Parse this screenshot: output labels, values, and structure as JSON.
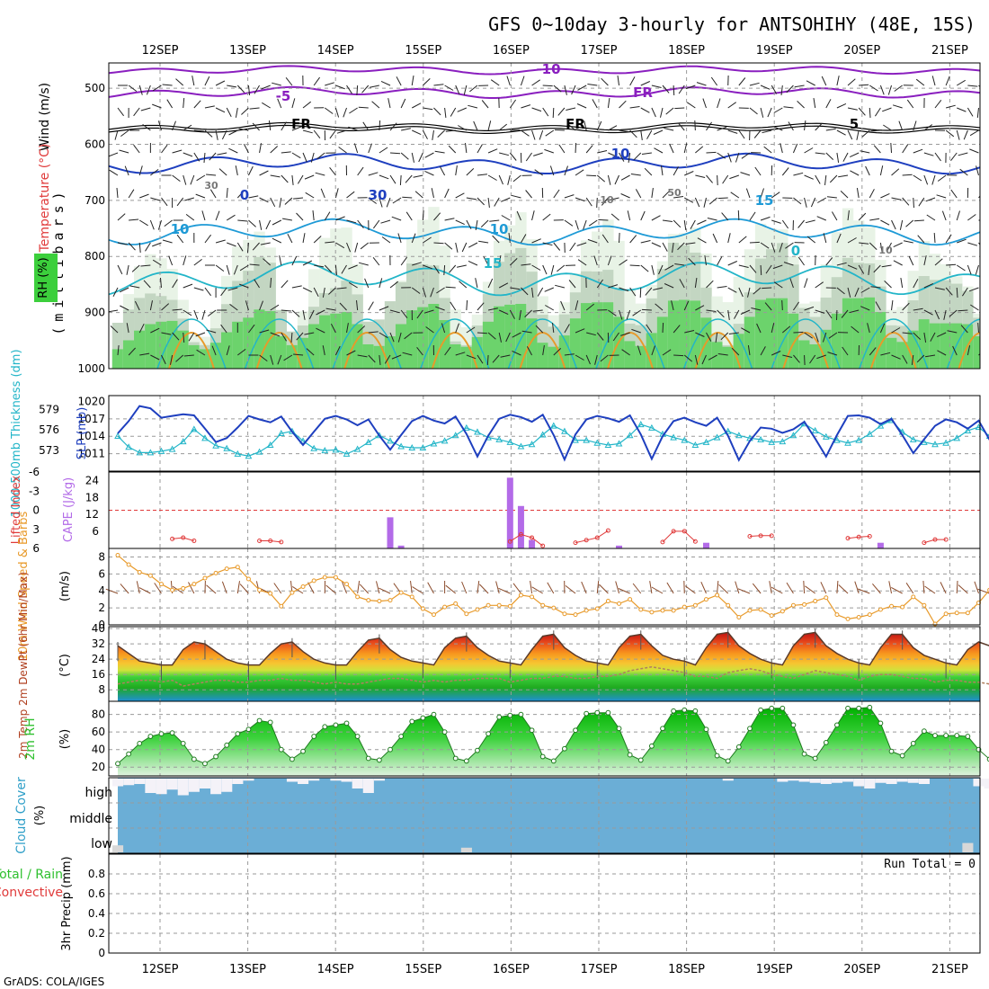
{
  "title": "GFS 0~10day 3-hourly for ANTSOHIHY (48E, 15S)",
  "credit": "GrADS: COLA/IGES",
  "days": [
    "12SEP",
    "13SEP",
    "14SEP",
    "15SEP",
    "16SEP",
    "17SEP",
    "18SEP",
    "19SEP",
    "20SEP",
    "21SEP"
  ],
  "colors": {
    "blue": "#1e3fbf",
    "cyan": "#22b5c8",
    "orange": "#e89a2a",
    "red": "#e03a3a",
    "purple": "#8a1fbf",
    "cape": "#b36be8",
    "green": "#2fc02f",
    "sky": "#6baed6",
    "grid": "#9a9a9a"
  },
  "panels": {
    "upper": {
      "ylabel": "(millibars)",
      "yticks": [
        "500",
        "600",
        "700",
        "800",
        "900",
        "1000"
      ],
      "title_wind": "Wind (m/s)",
      "title_temp": "Temperature (°C)",
      "title_rh": "RH (%)",
      "labels": [
        "-10",
        "-5",
        "FR",
        "FR",
        "FR",
        "5",
        "10",
        "10",
        "10",
        "15",
        "15",
        "0",
        "0",
        "30",
        "30",
        "50",
        "10",
        "10"
      ]
    },
    "thickness": {
      "ylabel_left": "1000-500mb Thickness (dm)",
      "ylabel_right": "SLP (mb)",
      "yticks_left": [
        "579",
        "576",
        "573"
      ],
      "yticks_right": [
        "1020",
        "1017",
        "1014",
        "1011"
      ]
    },
    "cape": {
      "ylabel_left": "Lifted Index",
      "ylabel_right": "CAPE (J/kg)",
      "yticks_left": [
        "-6",
        "-3",
        "0",
        "3",
        "6"
      ],
      "yticks_right": [
        "24",
        "18",
        "12",
        "6"
      ]
    },
    "wind10": {
      "ylabel": "10m Wind Speed & Barbs",
      "units": "(m/s)",
      "yticks": [
        "8",
        "6",
        "4",
        "2",
        "0"
      ]
    },
    "temp2m": {
      "ylabel": "2m Temp 2m DewPt (6hr Min/Max)",
      "units": "(°C)",
      "yticks": [
        "40",
        "32",
        "24",
        "16",
        "8"
      ]
    },
    "rh2m": {
      "ylabel": "2m RH",
      "units": "(%)",
      "yticks": [
        "80",
        "60",
        "40",
        "20"
      ]
    },
    "cloud": {
      "ylabel": "Cloud Cover",
      "units": "(%)",
      "levels": [
        "high",
        "middle",
        "low"
      ]
    },
    "precip": {
      "ylabel": "3hr Precip (mm)",
      "ylabel_total": "Total / Rain",
      "ylabel_conv": "Convective",
      "yticks": [
        "0.8",
        "0.6",
        "0.4",
        "0.2",
        "0"
      ],
      "run_total": "Run Total = 0"
    }
  },
  "chart_data": [
    {
      "type": "line",
      "title": "Sea level pressure and 1000-500mb thickness",
      "x": "3-hourly steps from 11 Sep 12Z to 21 Sep 12Z",
      "series": [
        {
          "name": "SLP (mb)",
          "values": [
            1014.5,
            1016.6,
            1019.2,
            1018.8,
            1017.2,
            1017.5,
            1017.8,
            1017.6,
            1015.3,
            1013,
            1013.7,
            1015.5,
            1017.5,
            1016.9,
            1016.4,
            1017.4,
            1014.8,
            1012.5,
            1014.8,
            1017,
            1017.5,
            1016.9,
            1015.9,
            1016.9,
            1014.1,
            1011.7,
            1014.2,
            1016.6,
            1017.5,
            1016.7,
            1016.2,
            1017.4,
            1014.4,
            1010.5,
            1014.1,
            1017,
            1017.7,
            1017.3,
            1016.5,
            1017.7,
            1014.2,
            1010,
            1014.3,
            1016.9,
            1017.5,
            1017.1,
            1016.5,
            1017.6,
            1014.3,
            1010.1,
            1014,
            1016.6,
            1017.2,
            1016.4,
            1015.8,
            1017.2,
            1014.1,
            1009.9,
            1013.2,
            1015.5,
            1015.3,
            1014.6,
            1015.2,
            1016.5,
            1013.6,
            1010.5,
            1014.2,
            1017.5,
            1017.6,
            1017.2,
            1016.1,
            1017,
            1014.2,
            1011.1,
            1013.5,
            1015.8,
            1016.9,
            1016.4,
            1015.3,
            1016.7,
            1013.4,
            1011.3
          ]
        },
        {
          "name": "Thickness (dm)",
          "values": [
            575.1,
            573.5,
            572.7,
            572.7,
            572.9,
            573.2,
            574.3,
            576.1,
            574.8,
            573.7,
            573.3,
            572.5,
            572.2,
            572.8,
            573.8,
            575.5,
            575.8,
            574.4,
            573.3,
            573,
            573.1,
            572.5,
            573.2,
            574.2,
            575.2,
            574.4,
            573.6,
            573.4,
            573.4,
            574,
            574.4,
            575.2,
            576.3,
            575.7,
            574.9,
            574.6,
            574.2,
            573.6,
            573.9,
            575.3,
            576.6,
            575.8,
            574.5,
            574.5,
            574.1,
            573.8,
            574,
            575.2,
            576.8,
            576.3,
            575.4,
            574.9,
            574.5,
            573.8,
            574.2,
            574.9,
            575.8,
            575.2,
            574.8,
            574.6,
            574.2,
            574.3,
            575.2,
            576.9,
            575.9,
            575,
            574.5,
            574.1,
            574.5,
            575.4,
            576.6,
            577.4,
            575.7,
            574.6,
            574.2,
            573.9,
            574.1,
            574.8,
            575.9,
            576.4,
            575.1,
            574.8
          ]
        }
      ]
    },
    {
      "type": "bar",
      "title": "CAPE (J/kg) and Lifted Index",
      "x": "3-hourly steps",
      "series": [
        {
          "name": "CAPE (J/kg)",
          "values": [
            0,
            0,
            0,
            0,
            0,
            0,
            0,
            0,
            0,
            0,
            0,
            0,
            0,
            0,
            0,
            0,
            0,
            0,
            0,
            0,
            0,
            0,
            0,
            0,
            0,
            11,
            1,
            0,
            0,
            0,
            0,
            0,
            0,
            0,
            0,
            0,
            25,
            15,
            3,
            0,
            0,
            0,
            0,
            0,
            0,
            0,
            1,
            0,
            0,
            0,
            0,
            0,
            0,
            0,
            2,
            0,
            0,
            0,
            0,
            0,
            0,
            0,
            0,
            0,
            0,
            0,
            0,
            0,
            0,
            0,
            2,
            0,
            0,
            0,
            0,
            0,
            0,
            0,
            0,
            0,
            0,
            0
          ]
        },
        {
          "name": "Lifted Index",
          "values": [
            null,
            null,
            null,
            null,
            null,
            4.5,
            4.3,
            4.8,
            null,
            null,
            null,
            null,
            null,
            4.8,
            4.8,
            5,
            null,
            null,
            null,
            null,
            null,
            null,
            null,
            null,
            null,
            null,
            null,
            null,
            null,
            null,
            null,
            null,
            null,
            null,
            null,
            null,
            4.9,
            3.8,
            4.3,
            5.6,
            null,
            null,
            5.1,
            4.7,
            4.3,
            3.2,
            null,
            null,
            null,
            null,
            5,
            3.3,
            3.3,
            4.9,
            null,
            null,
            null,
            null,
            4.1,
            4,
            4,
            null,
            null,
            null,
            null,
            null,
            null,
            4.4,
            4.2,
            4.1,
            null,
            null,
            null,
            null,
            5.1,
            4.6,
            4.6,
            null,
            null,
            null,
            null,
            null
          ]
        }
      ]
    },
    {
      "type": "line",
      "title": "10m Wind Speed (m/s)",
      "x": "3-hourly steps",
      "series": [
        {
          "name": "Wind speed (m/s)",
          "values": [
            8.2,
            7.1,
            6.2,
            5.8,
            4.8,
            4.1,
            4.3,
            4.8,
            5.5,
            6.1,
            6.6,
            6.8,
            5.4,
            4.1,
            3.7,
            2.2,
            3.8,
            4.5,
            5.2,
            5.6,
            5.6,
            4.8,
            3.3,
            2.9,
            2.8,
            2.9,
            3.8,
            3.3,
            1.9,
            1.2,
            2.1,
            2.5,
            1.3,
            1.8,
            2.3,
            2.3,
            2.2,
            3.5,
            3.3,
            2.3,
            2,
            1.3,
            1.2,
            1.7,
            1.9,
            2.8,
            2.5,
            3,
            1.8,
            1.5,
            1.7,
            1.7,
            2.1,
            2.3,
            3,
            3.5,
            2.3,
            0.9,
            1.7,
            1.8,
            1.1,
            1.6,
            2.3,
            2.4,
            2.8,
            3.2,
            1.2,
            0.7,
            0.9,
            1.2,
            1.8,
            2.2,
            2.1,
            3.3,
            2.3,
            0.1,
            1.3,
            1.4,
            1.4,
            2.6,
            4.1,
            5.5
          ]
        }
      ]
    },
    {
      "type": "area",
      "title": "2m Temp and DewPt (°C)",
      "x": "3-hourly steps",
      "series": [
        {
          "name": "2m Temp",
          "values": [
            31,
            27,
            23,
            22,
            21,
            21,
            29,
            33,
            32,
            28,
            24,
            22,
            21,
            21,
            27,
            32,
            33,
            28,
            24,
            22,
            21,
            21,
            28,
            34,
            35,
            29,
            25,
            23,
            22,
            21,
            30,
            35,
            36,
            30,
            26,
            23,
            22,
            21,
            29,
            36,
            37,
            30,
            26,
            23,
            22,
            21,
            30,
            36,
            37,
            31,
            26,
            24,
            23,
            21,
            30,
            37,
            38,
            31,
            27,
            24,
            22,
            21,
            31,
            37,
            38,
            31,
            27,
            24,
            22,
            21,
            30,
            37,
            37,
            30,
            26,
            24,
            22,
            21,
            29,
            33,
            31,
            29
          ]
        },
        {
          "name": "2m DewPt",
          "values": [
            11,
            12,
            13,
            13,
            12,
            13,
            10,
            11,
            12,
            13,
            13,
            12,
            12,
            13,
            13,
            14,
            13,
            13,
            12,
            11,
            12,
            11,
            11,
            12,
            13,
            14,
            14,
            13,
            12,
            13,
            12,
            13,
            13,
            14,
            14,
            14,
            12,
            13,
            14,
            14,
            15,
            15,
            14,
            14,
            15,
            15,
            16,
            18,
            19,
            20,
            19,
            18,
            17,
            15,
            15,
            14,
            17,
            18,
            19,
            18,
            16,
            15,
            14,
            16,
            18,
            17,
            16,
            15,
            13,
            15,
            16,
            16,
            15,
            14,
            14,
            12,
            13,
            13,
            12,
            12,
            11,
            10
          ]
        }
      ]
    },
    {
      "type": "area",
      "title": "2m RH (%)",
      "x": "3-hourly steps",
      "series": [
        {
          "name": "2m RH",
          "values": [
            24,
            35,
            47,
            55,
            58,
            59,
            47,
            29,
            24,
            32,
            45,
            58,
            63,
            73,
            71,
            40,
            29,
            38,
            55,
            66,
            68,
            70,
            55,
            30,
            28,
            40,
            55,
            72,
            76,
            80,
            60,
            30,
            27,
            39,
            58,
            77,
            79,
            80,
            62,
            32,
            27,
            41,
            62,
            81,
            82,
            82,
            64,
            34,
            28,
            44,
            64,
            84,
            85,
            84,
            63,
            33,
            27,
            43,
            64,
            85,
            87,
            87,
            68,
            35,
            30,
            48,
            68,
            87,
            87,
            88,
            70,
            38,
            33,
            47,
            61,
            56,
            56,
            56,
            55,
            40,
            29,
            27
          ]
        }
      ]
    },
    {
      "type": "bar",
      "title": "Cloud Cover (%) high / middle / low",
      "x": "3-hourly steps",
      "series": [
        {
          "name": "high",
          "values": [
            30,
            25,
            20,
            60,
            65,
            45,
            70,
            55,
            40,
            65,
            55,
            20,
            5,
            0,
            0,
            0,
            10,
            20,
            5,
            0,
            5,
            10,
            40,
            60,
            5,
            0,
            0,
            0,
            0,
            0,
            0,
            0,
            0,
            0,
            0,
            0,
            0,
            0,
            0,
            0,
            0,
            0,
            0,
            0,
            0,
            0,
            0,
            0,
            0,
            0,
            0,
            0,
            0,
            0,
            0,
            0,
            5,
            0,
            0,
            0,
            0,
            10,
            5,
            10,
            15,
            20,
            15,
            10,
            30,
            40,
            15,
            20,
            10,
            15,
            20,
            0,
            0,
            0,
            0,
            30,
            40,
            20
          ]
        },
        {
          "name": "low",
          "values": [
            30,
            0,
            0,
            0,
            0,
            0,
            0,
            0,
            0,
            0,
            0,
            0,
            0,
            0,
            0,
            0,
            0,
            0,
            0,
            0,
            0,
            0,
            0,
            0,
            0,
            0,
            0,
            0,
            0,
            0,
            0,
            0,
            20,
            0,
            0,
            0,
            0,
            0,
            0,
            0,
            0,
            0,
            0,
            0,
            0,
            0,
            0,
            0,
            0,
            0,
            0,
            0,
            0,
            0,
            0,
            0,
            0,
            0,
            0,
            0,
            0,
            0,
            0,
            0,
            0,
            0,
            0,
            0,
            0,
            0,
            0,
            0,
            0,
            0,
            0,
            0,
            0,
            0,
            40,
            0,
            0,
            0
          ]
        }
      ]
    },
    {
      "type": "bar",
      "title": "3hr Precip (mm)",
      "x": "3-hourly steps",
      "ylim": [
        0,
        1
      ],
      "series": [
        {
          "name": "Total / Rain",
          "values": [
            0,
            0,
            0,
            0,
            0,
            0,
            0,
            0,
            0,
            0
          ]
        }
      ]
    }
  ]
}
